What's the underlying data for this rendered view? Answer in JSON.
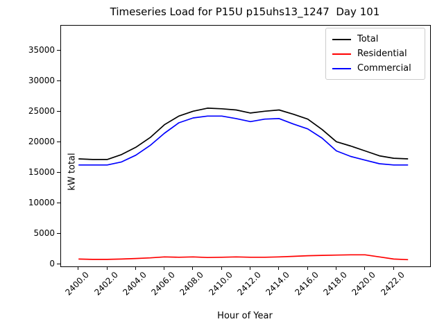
{
  "title": "Timeseries Load for P15U p15uhs13_1247  Day 101",
  "chart_data": {
    "type": "line",
    "title": "Timeseries Load for P15U p15uhs13_1247  Day 101",
    "xlabel": "Hour of Year",
    "ylabel": "kW total",
    "grid": false,
    "legend_position": "upper right",
    "xlim": [
      2398.78,
      2424.54
    ],
    "ylim": [
      -300,
      39100
    ],
    "xtick_values": [
      2400,
      2402,
      2404,
      2406,
      2408,
      2410,
      2412,
      2414,
      2416,
      2418,
      2420,
      2422
    ],
    "xtick_labels": [
      "2400.0",
      "2402.0",
      "2404.0",
      "2406.0",
      "2408.0",
      "2410.0",
      "2412.0",
      "2414.0",
      "2416.0",
      "2418.0",
      "2420.0",
      "2422.0"
    ],
    "ytick_values": [
      0,
      5000,
      10000,
      15000,
      20000,
      25000,
      30000,
      35000
    ],
    "ytick_labels": [
      "0",
      "5000",
      "10000",
      "15000",
      "20000",
      "25000",
      "30000",
      "35000"
    ],
    "x": [
      2400,
      2401,
      2402,
      2403,
      2404,
      2405,
      2406,
      2407,
      2408,
      2409,
      2410,
      2411,
      2412,
      2413,
      2414,
      2415,
      2416,
      2417,
      2418,
      2419,
      2420,
      2421,
      2422,
      2423
    ],
    "series": [
      {
        "name": "Total",
        "color": "#000000",
        "values": [
          17300,
          17200,
          17200,
          18000,
          19200,
          20800,
          22900,
          24300,
          25100,
          25600,
          25500,
          25300,
          24800,
          25100,
          25300,
          24600,
          23800,
          22100,
          20100,
          19400,
          18600,
          17800,
          17400,
          17300
        ]
      },
      {
        "name": "Residential",
        "color": "#ff0000",
        "values": [
          900,
          850,
          850,
          900,
          1000,
          1100,
          1250,
          1200,
          1250,
          1150,
          1200,
          1250,
          1200,
          1200,
          1250,
          1350,
          1450,
          1500,
          1550,
          1600,
          1600,
          1250,
          900,
          800
        ]
      },
      {
        "name": "Commercial",
        "color": "#0000ff",
        "values": [
          16300,
          16300,
          16300,
          16800,
          17900,
          19500,
          21500,
          23200,
          24000,
          24300,
          24300,
          23900,
          23400,
          23800,
          23900,
          23000,
          22200,
          20700,
          18600,
          17700,
          17100,
          16500,
          16300,
          16300
        ]
      }
    ]
  }
}
